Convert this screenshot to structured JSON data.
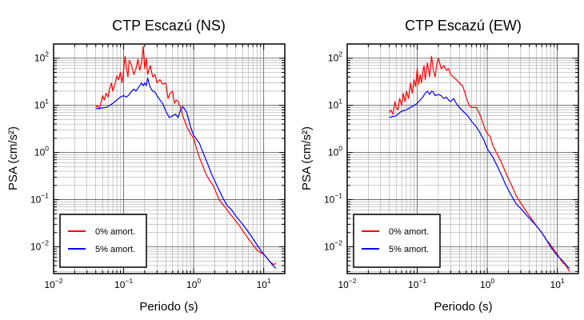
{
  "chart_data": [
    {
      "type": "line",
      "title": "CTP Escazú (NS)",
      "xlabel": "Periodo (s)",
      "ylabel": "PSA (cm/s²)",
      "xscale": "log",
      "yscale": "log",
      "xlim": [
        0.01,
        20
      ],
      "ylim": [
        0.0027,
        200
      ],
      "grid": true,
      "legend_position": "bottom-left",
      "x_ticks": [
        {
          "base": "10",
          "exp": "−2",
          "value": 0.01
        },
        {
          "base": "10",
          "exp": "−1",
          "value": 0.1
        },
        {
          "base": "10",
          "exp": "0",
          "value": 1
        },
        {
          "base": "10",
          "exp": "1",
          "value": 10
        }
      ],
      "y_ticks": [
        {
          "base": "10",
          "exp": "2",
          "value": 100
        },
        {
          "base": "10",
          "exp": "1",
          "value": 10
        },
        {
          "base": "10",
          "exp": "0",
          "value": 1
        },
        {
          "base": "10",
          "exp": "−1",
          "value": 0.1
        },
        {
          "base": "10",
          "exp": "−2",
          "value": 0.01
        }
      ],
      "series": [
        {
          "name": "0% amort.",
          "color": "#ff0000",
          "x": [
            0.04,
            0.042,
            0.045,
            0.048,
            0.05,
            0.053,
            0.056,
            0.06,
            0.063,
            0.067,
            0.07,
            0.075,
            0.08,
            0.085,
            0.09,
            0.095,
            0.1,
            0.105,
            0.11,
            0.115,
            0.12,
            0.13,
            0.14,
            0.15,
            0.16,
            0.17,
            0.18,
            0.19,
            0.2,
            0.21,
            0.22,
            0.24,
            0.26,
            0.28,
            0.3,
            0.33,
            0.36,
            0.4,
            0.43,
            0.46,
            0.5,
            0.53,
            0.56,
            0.6,
            0.65,
            0.7,
            0.8,
            0.9,
            1.0,
            1.1,
            1.2,
            1.3,
            1.4,
            1.5,
            1.7,
            1.9,
            2.1,
            2.3,
            2.5,
            2.8,
            3.0,
            3.5,
            4.0,
            4.5,
            5.0,
            5.5,
            6.0,
            7.0,
            8.0,
            9.0,
            10,
            11,
            12,
            13,
            14,
            15
          ],
          "y": [
            9,
            10,
            8.5,
            12,
            16,
            13,
            18,
            15,
            22,
            30,
            20,
            28,
            42,
            35,
            50,
            30,
            55,
            110,
            60,
            40,
            90,
            70,
            45,
            60,
            95,
            55,
            80,
            180,
            60,
            100,
            45,
            70,
            40,
            45,
            30,
            35,
            28,
            30,
            14,
            18,
            20,
            11,
            13,
            12,
            9,
            6,
            3.5,
            2.5,
            2.0,
            1.2,
            0.8,
            0.6,
            0.45,
            0.35,
            0.25,
            0.2,
            0.14,
            0.1,
            0.085,
            0.07,
            0.06,
            0.045,
            0.035,
            0.028,
            0.022,
            0.018,
            0.015,
            0.011,
            0.0085,
            0.0075,
            0.007,
            0.006,
            0.005,
            0.0045,
            0.0042,
            0.0045
          ]
        },
        {
          "name": "5% amort.",
          "color": "#0000ff",
          "x": [
            0.04,
            0.045,
            0.05,
            0.056,
            0.06,
            0.067,
            0.075,
            0.08,
            0.09,
            0.1,
            0.11,
            0.12,
            0.13,
            0.14,
            0.15,
            0.16,
            0.17,
            0.18,
            0.19,
            0.2,
            0.21,
            0.22,
            0.24,
            0.26,
            0.28,
            0.3,
            0.33,
            0.36,
            0.4,
            0.45,
            0.5,
            0.55,
            0.6,
            0.65,
            0.7,
            0.8,
            0.9,
            1.0,
            1.2,
            1.4,
            1.6,
            1.8,
            2.0,
            2.3,
            2.6,
            3.0,
            3.5,
            4.0,
            5.0,
            6.0,
            7.0,
            8.0,
            9.0,
            10,
            12,
            14,
            15
          ],
          "y": [
            8.5,
            8.5,
            8.8,
            9,
            9.5,
            10.5,
            12,
            13,
            15,
            16,
            15,
            17,
            20,
            22,
            20,
            23,
            26,
            30,
            26,
            30,
            26,
            38,
            24,
            20,
            19,
            16,
            13,
            11,
            7.5,
            5.5,
            6,
            6.5,
            5.5,
            8,
            9.5,
            7,
            3.5,
            2.3,
            1.6,
            0.9,
            0.55,
            0.35,
            0.25,
            0.16,
            0.11,
            0.075,
            0.06,
            0.045,
            0.03,
            0.021,
            0.015,
            0.011,
            0.0085,
            0.007,
            0.005,
            0.0038,
            0.0035
          ]
        }
      ]
    },
    {
      "type": "line",
      "title": "CTP Escazú (EW)",
      "xlabel": "Periodo (s)",
      "ylabel": "PSA (cm/s²)",
      "xscale": "log",
      "yscale": "log",
      "xlim": [
        0.01,
        20
      ],
      "ylim": [
        0.0027,
        200
      ],
      "grid": true,
      "legend_position": "bottom-left",
      "x_ticks": [
        {
          "base": "10",
          "exp": "−2",
          "value": 0.01
        },
        {
          "base": "10",
          "exp": "−1",
          "value": 0.1
        },
        {
          "base": "10",
          "exp": "0",
          "value": 1
        },
        {
          "base": "10",
          "exp": "1",
          "value": 10
        }
      ],
      "y_ticks": [
        {
          "base": "10",
          "exp": "2",
          "value": 100
        },
        {
          "base": "10",
          "exp": "1",
          "value": 10
        },
        {
          "base": "10",
          "exp": "0",
          "value": 1
        },
        {
          "base": "10",
          "exp": "−1",
          "value": 0.1
        },
        {
          "base": "10",
          "exp": "−2",
          "value": 0.01
        }
      ],
      "series": [
        {
          "name": "0% amort.",
          "color": "#ff0000",
          "x": [
            0.04,
            0.042,
            0.045,
            0.048,
            0.05,
            0.053,
            0.056,
            0.06,
            0.063,
            0.067,
            0.07,
            0.075,
            0.08,
            0.085,
            0.09,
            0.095,
            0.1,
            0.105,
            0.11,
            0.115,
            0.12,
            0.125,
            0.13,
            0.14,
            0.15,
            0.16,
            0.17,
            0.18,
            0.19,
            0.2,
            0.22,
            0.24,
            0.26,
            0.28,
            0.3,
            0.33,
            0.36,
            0.4,
            0.45,
            0.5,
            0.55,
            0.6,
            0.7,
            0.8,
            0.9,
            1.0,
            1.1,
            1.2,
            1.4,
            1.6,
            1.8,
            2.0,
            2.3,
            2.6,
            3.0,
            3.5,
            4.0,
            4.5,
            5.0,
            6.0,
            7.0,
            8.0,
            9.0,
            10,
            11,
            12,
            13,
            14,
            15
          ],
          "y": [
            7,
            8,
            6.5,
            12,
            9,
            8,
            14,
            10,
            18,
            12,
            20,
            14,
            30,
            18,
            35,
            25,
            60,
            28,
            45,
            30,
            50,
            70,
            35,
            80,
            40,
            110,
            55,
            40,
            75,
            100,
            60,
            70,
            55,
            60,
            45,
            40,
            35,
            30,
            25,
            15,
            10,
            9,
            9,
            6,
            3.5,
            2.5,
            2.2,
            1.4,
            0.9,
            0.6,
            0.4,
            0.28,
            0.18,
            0.12,
            0.085,
            0.06,
            0.045,
            0.035,
            0.028,
            0.02,
            0.014,
            0.011,
            0.0085,
            0.007,
            0.0055,
            0.0045,
            0.0042,
            0.0035,
            0.003
          ]
        },
        {
          "name": "5% amort.",
          "color": "#0000ff",
          "x": [
            0.04,
            0.045,
            0.05,
            0.056,
            0.06,
            0.067,
            0.075,
            0.08,
            0.09,
            0.1,
            0.11,
            0.12,
            0.13,
            0.14,
            0.15,
            0.16,
            0.17,
            0.18,
            0.2,
            0.22,
            0.24,
            0.26,
            0.28,
            0.3,
            0.33,
            0.36,
            0.4,
            0.45,
            0.5,
            0.55,
            0.6,
            0.7,
            0.8,
            0.9,
            1.0,
            1.2,
            1.4,
            1.6,
            1.8,
            2.0,
            2.3,
            2.6,
            3.0,
            3.5,
            4.0,
            5.0,
            6.0,
            7.0,
            8.0,
            9.0,
            10,
            12,
            14,
            15
          ],
          "y": [
            5.5,
            5.8,
            6,
            7,
            7.5,
            7.8,
            8.5,
            9,
            10,
            11,
            13,
            15,
            18,
            20,
            17,
            20,
            19,
            16,
            17,
            16,
            14,
            15,
            13,
            12,
            14,
            11,
            9,
            7.5,
            6.5,
            5.5,
            4.5,
            3.5,
            2.5,
            1.8,
            1.2,
            0.8,
            0.5,
            0.33,
            0.22,
            0.16,
            0.11,
            0.08,
            0.065,
            0.05,
            0.04,
            0.028,
            0.02,
            0.014,
            0.01,
            0.008,
            0.0065,
            0.005,
            0.0038,
            0.0035
          ]
        }
      ]
    }
  ]
}
